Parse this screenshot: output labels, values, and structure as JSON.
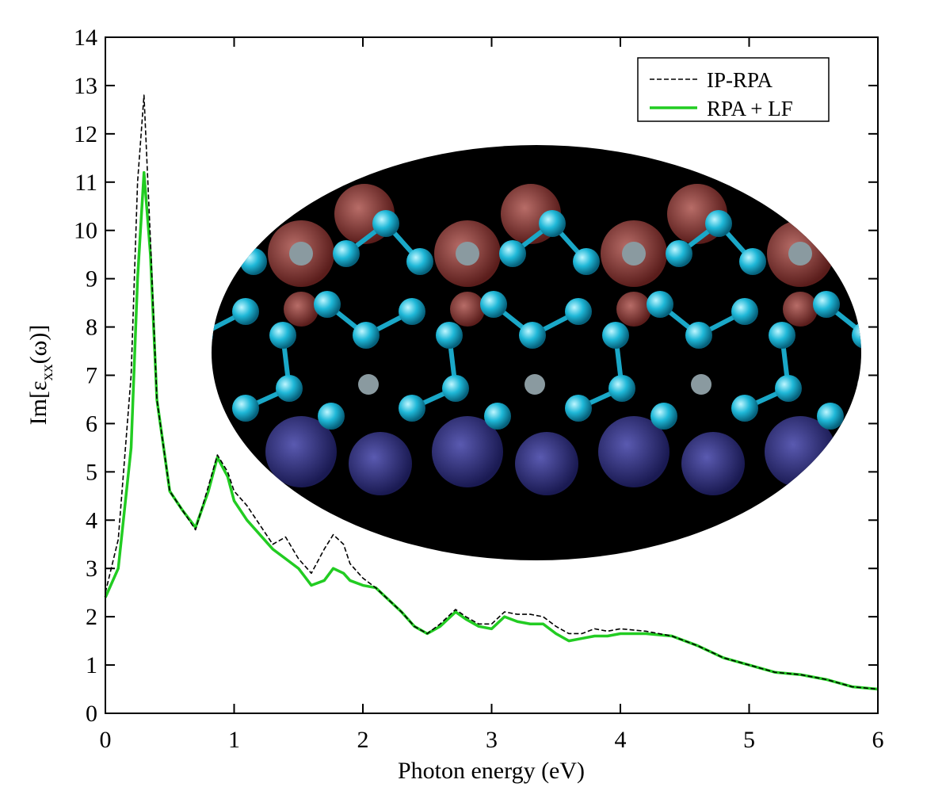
{
  "chart_data": {
    "type": "line",
    "xlabel": "Photon energy (eV)",
    "ylabel": {
      "main": "Im[ε",
      "sub": "xx",
      "tail": "(ω)]"
    },
    "x": [
      0,
      0.1,
      0.2,
      0.25,
      0.3,
      0.35,
      0.4,
      0.5,
      0.6,
      0.7,
      0.8,
      0.87,
      0.95,
      1.0,
      1.1,
      1.2,
      1.3,
      1.4,
      1.5,
      1.6,
      1.7,
      1.77,
      1.85,
      1.9,
      2.0,
      2.1,
      2.2,
      2.3,
      2.4,
      2.5,
      2.6,
      2.72,
      2.8,
      2.9,
      3.0,
      3.1,
      3.2,
      3.3,
      3.4,
      3.5,
      3.6,
      3.7,
      3.8,
      3.9,
      4.0,
      4.2,
      4.4,
      4.6,
      4.8,
      5.0,
      5.2,
      5.4,
      5.6,
      5.8,
      6.0
    ],
    "series": [
      {
        "name": "IP-RPA",
        "color": "#000000",
        "dash": true,
        "values": [
          2.5,
          3.6,
          7.0,
          11.0,
          12.8,
          9.8,
          6.5,
          4.6,
          4.2,
          3.8,
          4.7,
          5.35,
          5.0,
          4.6,
          4.3,
          3.9,
          3.5,
          3.65,
          3.2,
          2.9,
          3.4,
          3.7,
          3.5,
          3.1,
          2.8,
          2.6,
          2.35,
          2.1,
          1.8,
          1.65,
          1.85,
          2.15,
          2.0,
          1.85,
          1.85,
          2.1,
          2.05,
          2.05,
          2.0,
          1.8,
          1.65,
          1.65,
          1.75,
          1.7,
          1.75,
          1.7,
          1.6,
          1.4,
          1.15,
          1.0,
          0.85,
          0.8,
          0.7,
          0.55,
          0.5
        ]
      },
      {
        "name": "RPA + LF",
        "color": "#22cc22",
        "dash": false,
        "values": [
          2.4,
          3.0,
          5.5,
          9.0,
          11.2,
          9.5,
          6.5,
          4.6,
          4.2,
          3.85,
          4.6,
          5.3,
          4.9,
          4.4,
          4.0,
          3.7,
          3.4,
          3.2,
          3.0,
          2.65,
          2.75,
          3.0,
          2.9,
          2.75,
          2.65,
          2.6,
          2.35,
          2.1,
          1.8,
          1.65,
          1.8,
          2.1,
          1.95,
          1.8,
          1.75,
          2.0,
          1.9,
          1.85,
          1.85,
          1.65,
          1.5,
          1.55,
          1.6,
          1.6,
          1.65,
          1.65,
          1.6,
          1.4,
          1.15,
          1.0,
          0.85,
          0.8,
          0.7,
          0.55,
          0.5
        ]
      }
    ],
    "xlim": [
      0,
      6
    ],
    "xticks": [
      0,
      1,
      2,
      3,
      4,
      5,
      6
    ],
    "ylim": [
      0,
      14
    ],
    "yticks": [
      0,
      1,
      2,
      3,
      4,
      5,
      6,
      7,
      8,
      9,
      10,
      11,
      12,
      13,
      14
    ],
    "legend": "top-right"
  }
}
